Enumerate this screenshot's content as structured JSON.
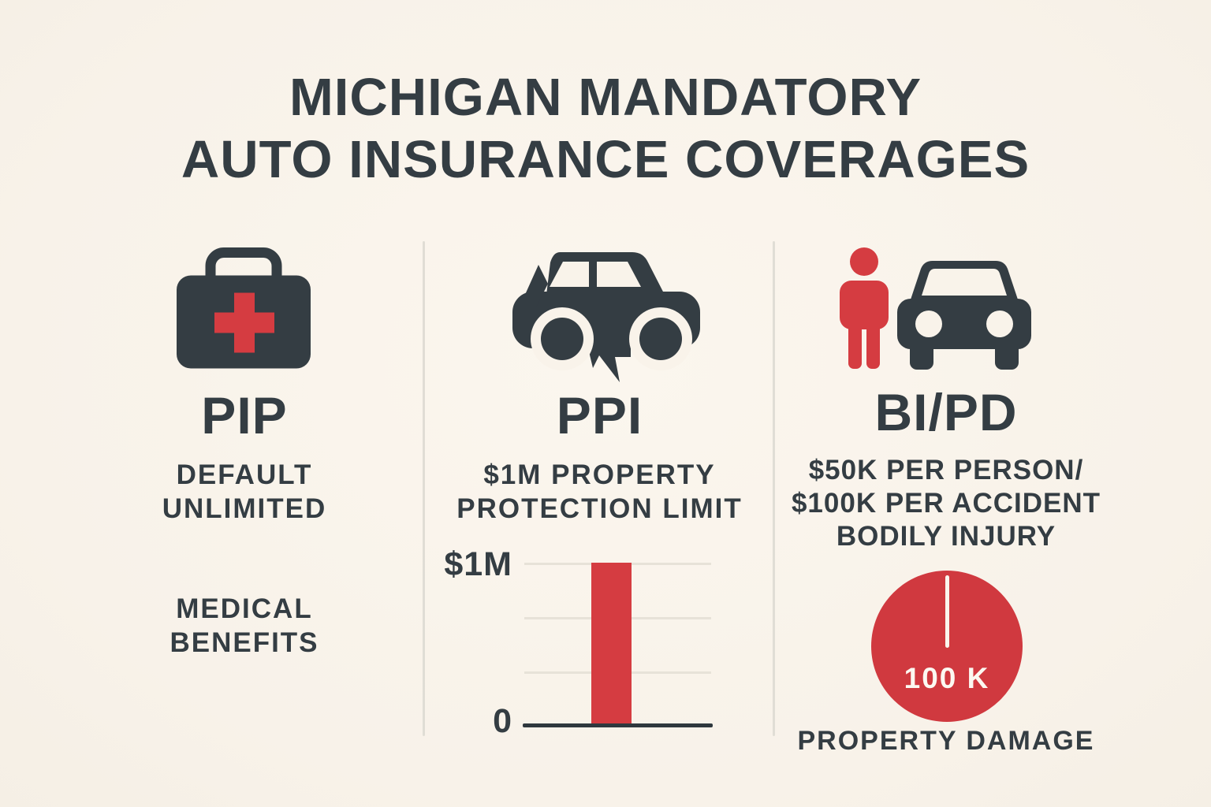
{
  "title": {
    "line1": "MICHIGAN MANDATORY",
    "line2": "AUTO INSURANCE COVERAGES"
  },
  "columns": {
    "pip": {
      "icon": "first-aid-kit-icon",
      "heading": "PIP",
      "subtitle": "DEFAULT\nUNLIMITED",
      "note": "MEDICAL\nBENEFITS"
    },
    "ppi": {
      "icon": "damaged-car-side-icon",
      "heading": "PPI",
      "subtitle": "$1M PROPERTY\nPROTECTION LIMIT"
    },
    "bipd": {
      "icons": [
        "person-icon",
        "car-front-icon"
      ],
      "heading": "BI/PD",
      "subtitle": "$50K PER PERSON/\n$100K PER ACCIDENT\nBODILY INJURY",
      "pie_caption": "PROPERTY DAMAGE"
    }
  },
  "chart_data": [
    {
      "type": "bar",
      "title": "PPI property protection limit",
      "categories": [
        "PPI limit"
      ],
      "values": [
        1000000
      ],
      "ylim": [
        0,
        1000000
      ],
      "ytick_labels": {
        "top": "$1M",
        "bottom": "0"
      },
      "grid": true,
      "gridline_count": 3,
      "bar_color": "#d53c41",
      "xlabel": "",
      "ylabel": ""
    },
    {
      "type": "pie",
      "title": "BI/PD property damage limit",
      "labels": [
        "PROPERTY DAMAGE"
      ],
      "values": [
        100000
      ],
      "center_label": "100 K",
      "slice_color": "#d0393f",
      "legend_position": "none"
    }
  ],
  "colors": {
    "background": "#f9f3ea",
    "ink": "#343d43",
    "accent_red": "#d53c41",
    "divider": "#e0ddd5",
    "gridline": "#e7e2d8",
    "pie_text": "#fcf8f1"
  }
}
